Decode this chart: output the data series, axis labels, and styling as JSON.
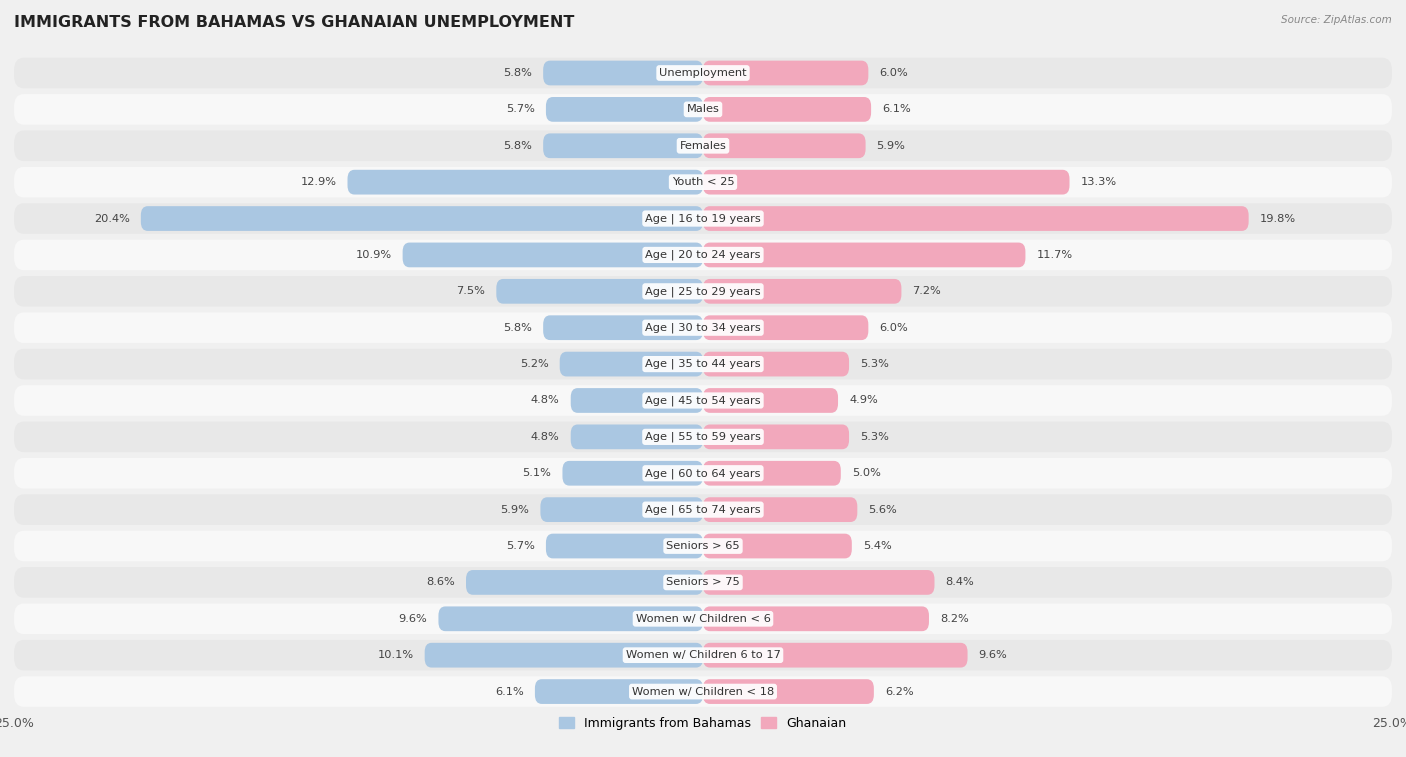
{
  "title": "IMMIGRANTS FROM BAHAMAS VS GHANAIAN UNEMPLOYMENT",
  "source": "Source: ZipAtlas.com",
  "categories": [
    "Unemployment",
    "Males",
    "Females",
    "Youth < 25",
    "Age | 16 to 19 years",
    "Age | 20 to 24 years",
    "Age | 25 to 29 years",
    "Age | 30 to 34 years",
    "Age | 35 to 44 years",
    "Age | 45 to 54 years",
    "Age | 55 to 59 years",
    "Age | 60 to 64 years",
    "Age | 65 to 74 years",
    "Seniors > 65",
    "Seniors > 75",
    "Women w/ Children < 6",
    "Women w/ Children 6 to 17",
    "Women w/ Children < 18"
  ],
  "left_values": [
    5.8,
    5.7,
    5.8,
    12.9,
    20.4,
    10.9,
    7.5,
    5.8,
    5.2,
    4.8,
    4.8,
    5.1,
    5.9,
    5.7,
    8.6,
    9.6,
    10.1,
    6.1
  ],
  "right_values": [
    6.0,
    6.1,
    5.9,
    13.3,
    19.8,
    11.7,
    7.2,
    6.0,
    5.3,
    4.9,
    5.3,
    5.0,
    5.6,
    5.4,
    8.4,
    8.2,
    9.6,
    6.2
  ],
  "left_color": "#aac7e2",
  "right_color": "#f2a8bc",
  "left_label": "Immigrants from Bahamas",
  "right_label": "Ghanaian",
  "xlim": 25.0,
  "bar_height": 0.68,
  "bg_color": "#f0f0f0",
  "row_odd_color": "#e8e8e8",
  "row_even_color": "#f8f8f8",
  "title_fontsize": 11.5,
  "label_fontsize": 8.2,
  "value_fontsize": 8.2
}
